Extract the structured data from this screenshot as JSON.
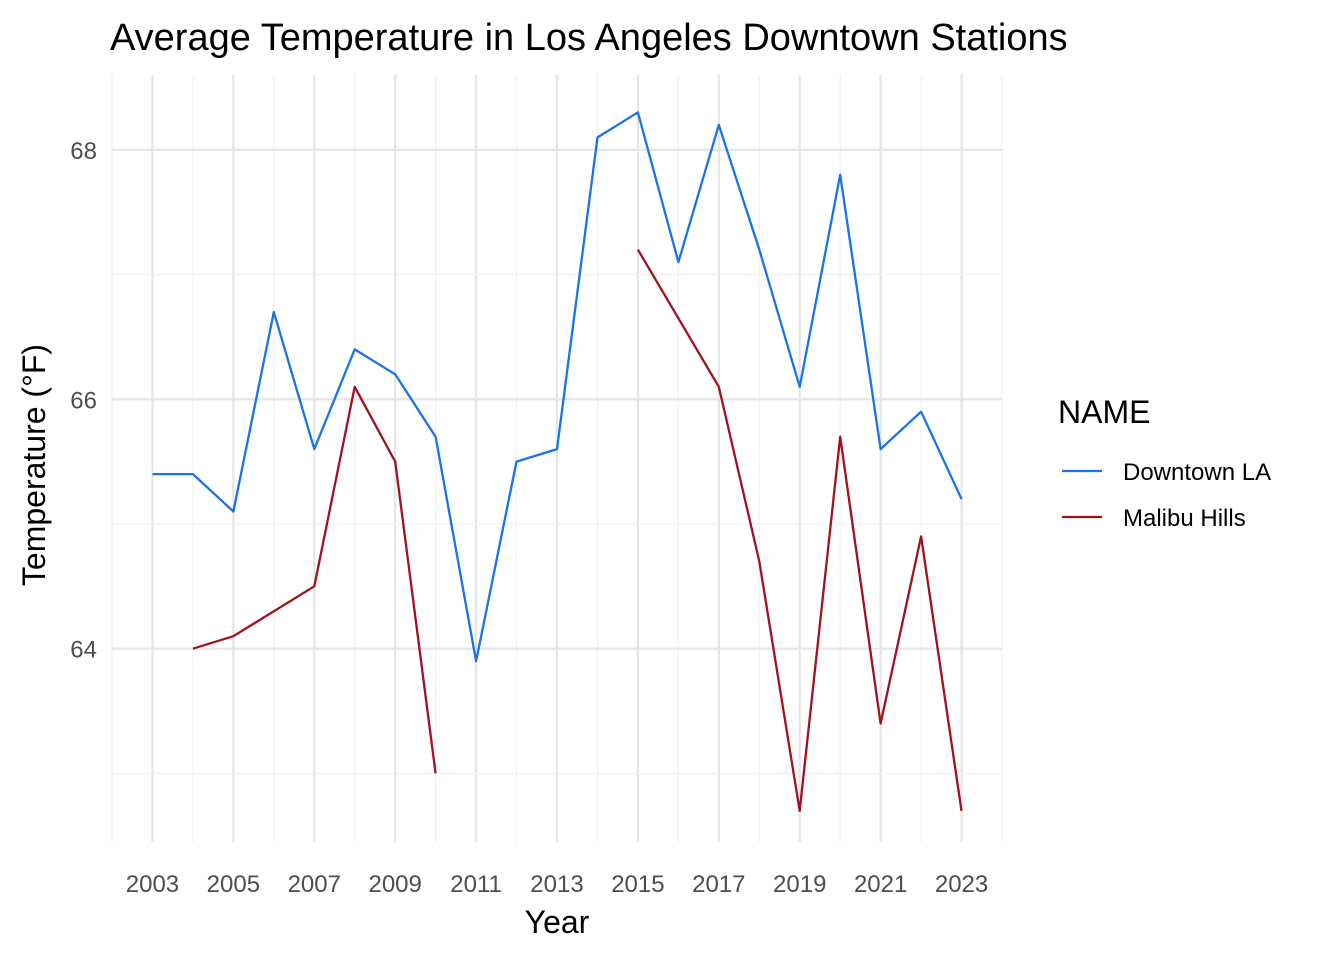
{
  "chart_data": {
    "type": "line",
    "title": "Average Temperature in Los Angeles Downtown Stations",
    "xlabel": "Year",
    "ylabel": "Temperature (°F)",
    "xlim": [
      2002.0,
      2024.0
    ],
    "ylim": [
      62.45,
      68.6
    ],
    "x_ticks": [
      2003,
      2005,
      2007,
      2009,
      2011,
      2013,
      2015,
      2017,
      2019,
      2021,
      2023
    ],
    "y_ticks": [
      64,
      66,
      68
    ],
    "grid": true,
    "legend": {
      "title": "NAME",
      "position": "right"
    },
    "series": [
      {
        "name": "Downtown LA",
        "color": "#1a73e8",
        "points": [
          [
            2003,
            65.4
          ],
          [
            2004,
            65.4
          ],
          [
            2005,
            65.1
          ],
          [
            2006,
            66.7
          ],
          [
            2007,
            65.6
          ],
          [
            2008,
            66.4
          ],
          [
            2009,
            66.2
          ],
          [
            2010,
            65.7
          ],
          [
            2011,
            63.9
          ],
          [
            2012,
            65.5
          ],
          [
            2013,
            65.6
          ],
          [
            2014,
            68.1
          ],
          [
            2015,
            68.3
          ],
          [
            2016,
            67.1
          ],
          [
            2017,
            68.2
          ],
          [
            2018,
            67.2
          ],
          [
            2019,
            66.1
          ],
          [
            2020,
            67.8
          ],
          [
            2021,
            65.6
          ],
          [
            2022,
            65.9
          ],
          [
            2023,
            65.2
          ]
        ]
      },
      {
        "name": "Malibu Hills",
        "color": "#a0121e",
        "segments": [
          [
            [
              2004,
              64.0
            ],
            [
              2005,
              64.1
            ],
            [
              2007,
              64.5
            ],
            [
              2008,
              66.1
            ],
            [
              2009,
              65.5
            ],
            [
              2010,
              63.0
            ]
          ],
          [
            [
              2015,
              67.2
            ],
            [
              2017,
              66.1
            ],
            [
              2018,
              64.7
            ],
            [
              2019,
              62.7
            ],
            [
              2020,
              65.7
            ],
            [
              2021,
              63.4
            ],
            [
              2022,
              64.9
            ],
            [
              2023,
              62.7
            ]
          ]
        ]
      }
    ]
  }
}
